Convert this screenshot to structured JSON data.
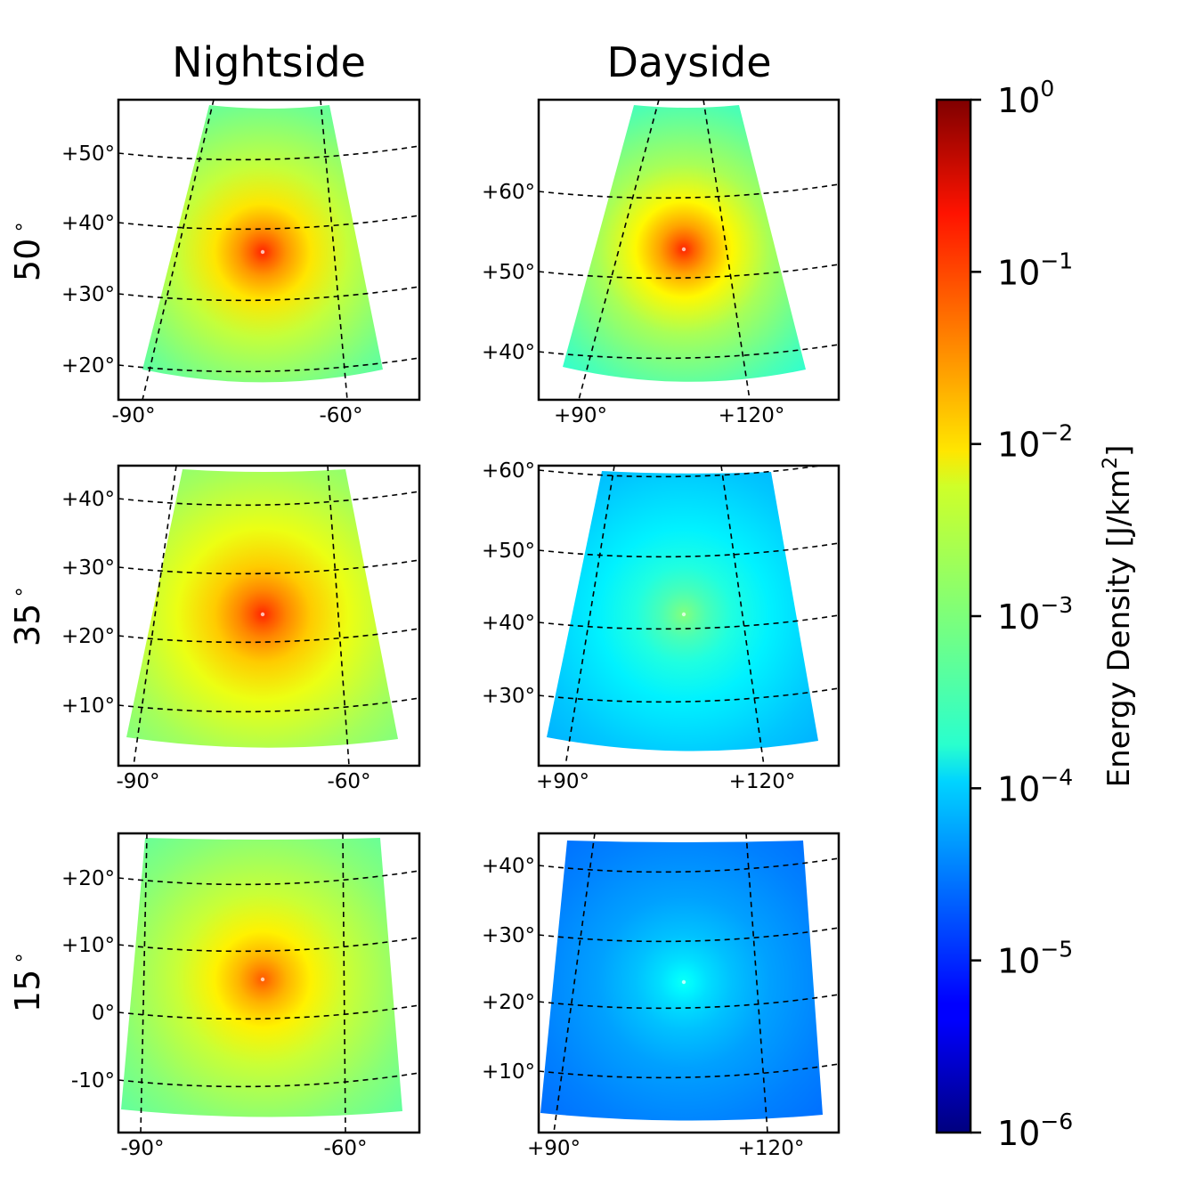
{
  "chart_data": {
    "type": "heatmap",
    "columns": [
      "Nightside",
      "Dayside"
    ],
    "rows": [
      "50$^\\circ$",
      "35$^\\circ$",
      "15$^\\circ$"
    ],
    "row_display": [
      "50",
      "35",
      "15"
    ],
    "degree_symbol": "∘",
    "colorbar": {
      "colormap": "jet",
      "scale": "log",
      "range": [
        1e-06,
        1
      ],
      "label_main": "Energy Density [J/km",
      "label_sup": "2",
      "label_end": "]",
      "ticks": [
        {
          "base": "10",
          "exp": "0"
        },
        {
          "base": "10",
          "exp": "−1"
        },
        {
          "base": "10",
          "exp": "−2"
        },
        {
          "base": "10",
          "exp": "−3"
        },
        {
          "base": "10",
          "exp": "−4"
        },
        {
          "base": "10",
          "exp": "−5"
        },
        {
          "base": "10",
          "exp": "−6"
        }
      ]
    },
    "panels": [
      {
        "name": "nightside-50",
        "peak_value": 0.1,
        "lat_labels": [
          "+50°",
          "+40°",
          "+30°",
          "+20°"
        ],
        "lon_labels": [
          "-90°",
          "-60°"
        ]
      },
      {
        "name": "dayside-50",
        "peak_value": 0.1,
        "lat_labels": [
          "+60°",
          "+50°",
          "+40°"
        ],
        "lon_labels": [
          "+90°",
          "+120°"
        ]
      },
      {
        "name": "nightside-35",
        "peak_value": 0.1,
        "lat_labels": [
          "+40°",
          "+30°",
          "+20°",
          "+10°"
        ],
        "lon_labels": [
          "-90°",
          "-60°"
        ]
      },
      {
        "name": "dayside-35",
        "peak_value": 0.001,
        "lat_labels": [
          "+60°",
          "+50°",
          "+40°",
          "+30°"
        ],
        "lon_labels": [
          "+90°",
          "+120°"
        ]
      },
      {
        "name": "nightside-15",
        "peak_value": 0.05,
        "lat_labels": [
          "+20°",
          "+10°",
          "0°",
          "-10°"
        ],
        "lon_labels": [
          "-90°",
          "-60°"
        ]
      },
      {
        "name": "dayside-15",
        "peak_value": 0.0002,
        "lat_labels": [
          "+40°",
          "+30°",
          "+20°",
          "+10°"
        ],
        "lon_labels": [
          "+90°",
          "+120°"
        ]
      }
    ]
  }
}
